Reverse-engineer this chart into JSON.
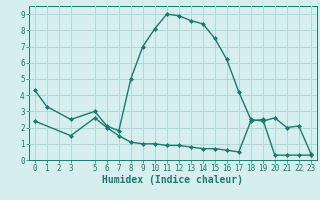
{
  "line1_x": [
    0,
    1,
    3,
    5,
    6,
    7,
    8,
    9,
    10,
    11,
    12,
    13,
    14,
    15,
    16,
    17,
    18,
    19,
    20,
    21,
    22,
    23
  ],
  "line1_y": [
    4.3,
    3.3,
    2.5,
    3.0,
    2.1,
    1.8,
    5.0,
    7.0,
    8.1,
    9.0,
    8.9,
    8.6,
    8.4,
    7.5,
    6.2,
    4.2,
    2.5,
    2.4,
    2.6,
    2.0,
    2.1,
    0.4
  ],
  "line2_x": [
    0,
    3,
    5,
    6,
    7,
    8,
    9,
    10,
    11,
    12,
    13,
    14,
    15,
    16,
    17,
    18,
    19,
    20,
    21,
    22,
    23
  ],
  "line2_y": [
    2.4,
    1.5,
    2.6,
    2.0,
    1.5,
    1.1,
    1.0,
    1.0,
    0.9,
    0.9,
    0.8,
    0.7,
    0.7,
    0.6,
    0.5,
    2.4,
    2.5,
    0.3,
    0.3,
    0.3,
    0.3
  ],
  "line_color": "#1a7a6e",
  "bg_color": "#d6eeee",
  "grid_color": "#b0d8d8",
  "xlabel": "Humidex (Indice chaleur)",
  "xlabel_fontsize": 7,
  "xlim": [
    -0.5,
    23.5
  ],
  "ylim": [
    0,
    9.5
  ],
  "xticks": [
    0,
    1,
    2,
    3,
    5,
    6,
    7,
    8,
    9,
    10,
    11,
    12,
    13,
    14,
    15,
    16,
    17,
    18,
    19,
    20,
    21,
    22,
    23
  ],
  "yticks": [
    0,
    1,
    2,
    3,
    4,
    5,
    6,
    7,
    8,
    9
  ],
  "tick_fontsize": 5.5,
  "marker": "D",
  "marker_size": 2.0,
  "linewidth": 1.0
}
